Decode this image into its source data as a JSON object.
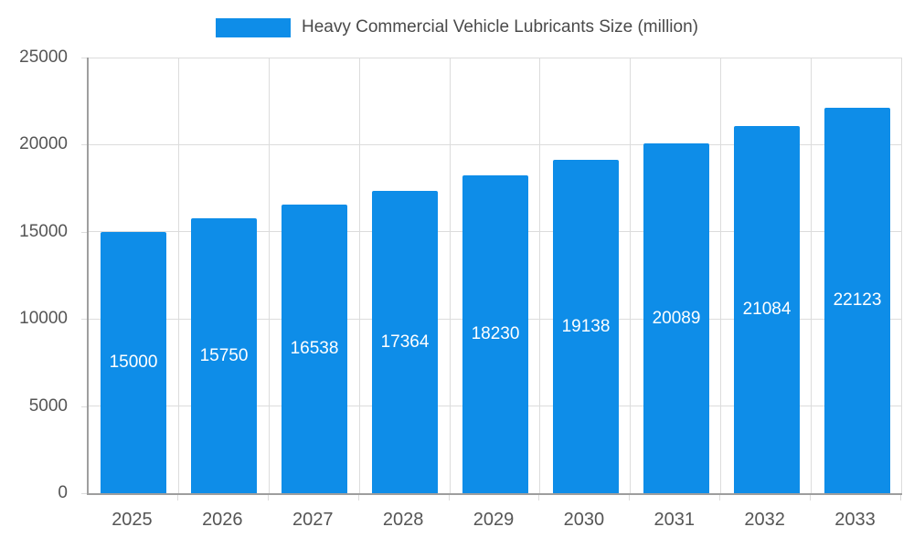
{
  "legend": {
    "label": "Heavy Commercial Vehicle Lubricants Size (million)",
    "swatch_color": "#0e8de8"
  },
  "chart_data": {
    "type": "bar",
    "title": "Heavy Commercial Vehicle Lubricants Size (million)",
    "categories": [
      "2025",
      "2026",
      "2027",
      "2028",
      "2029",
      "2030",
      "2031",
      "2032",
      "2033"
    ],
    "values": [
      15000,
      15750,
      16538,
      17364,
      18230,
      19138,
      20089,
      21084,
      22123
    ],
    "value_labels": [
      "15000",
      "15750",
      "16538",
      "17364",
      "18230",
      "19138",
      "20089",
      "21084",
      "22123"
    ],
    "xlabel": "",
    "ylabel": "",
    "ylim": [
      0,
      25000
    ],
    "yticks": [
      0,
      5000,
      10000,
      15000,
      20000,
      25000
    ],
    "ytick_labels": [
      "0",
      "5000",
      "10000",
      "15000",
      "20000",
      "25000"
    ],
    "bar_color": "#0e8de8",
    "value_label_color": "#ffffff",
    "grid": true,
    "legend_position": "top-center"
  },
  "colors": {
    "grid": "#dcdcdc",
    "axis": "#9e9e9e",
    "tick_text": "#555555",
    "title_text": "#4a4a4a"
  }
}
